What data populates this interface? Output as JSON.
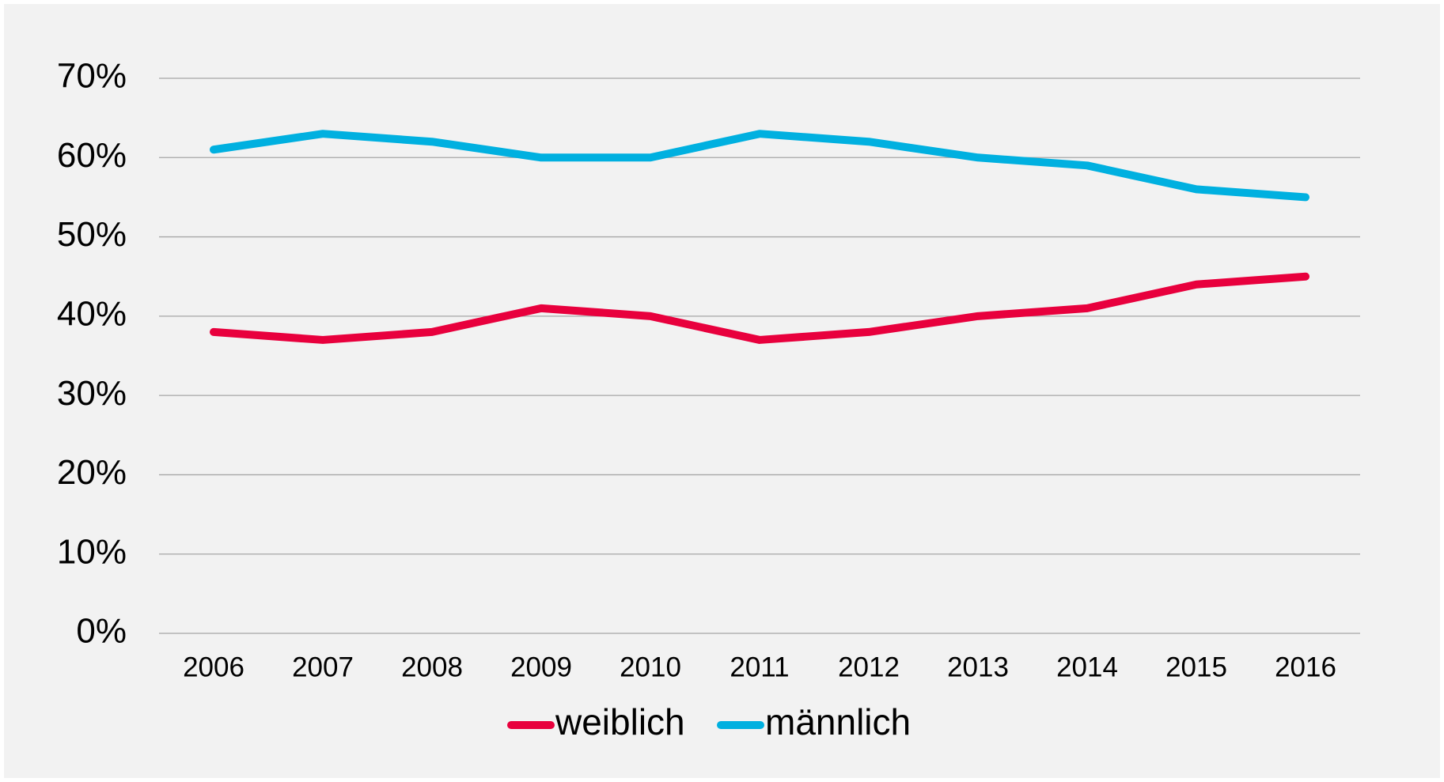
{
  "chart_data": {
    "type": "line",
    "categories": [
      "2006",
      "2007",
      "2008",
      "2009",
      "2010",
      "2011",
      "2012",
      "2013",
      "2014",
      "2015",
      "2016"
    ],
    "series": [
      {
        "name": "weiblich",
        "color": "#e8003d",
        "values": [
          38,
          37,
          38,
          41,
          40,
          37,
          38,
          40,
          41,
          44,
          45
        ]
      },
      {
        "name": "männlich",
        "color": "#00b0e0",
        "values": [
          61,
          63,
          62,
          60,
          60,
          63,
          62,
          60,
          59,
          56,
          55
        ]
      }
    ],
    "ylim": [
      0,
      70
    ],
    "yticks": [
      {
        "value": 0,
        "label": "0%"
      },
      {
        "value": 10,
        "label": "10%"
      },
      {
        "value": 20,
        "label": "20%"
      },
      {
        "value": 30,
        "label": "30%"
      },
      {
        "value": 40,
        "label": "40%"
      },
      {
        "value": 50,
        "label": "50%"
      },
      {
        "value": 60,
        "label": "60%"
      },
      {
        "value": 70,
        "label": "70%"
      }
    ],
    "grid": true,
    "legend": "bottom"
  }
}
